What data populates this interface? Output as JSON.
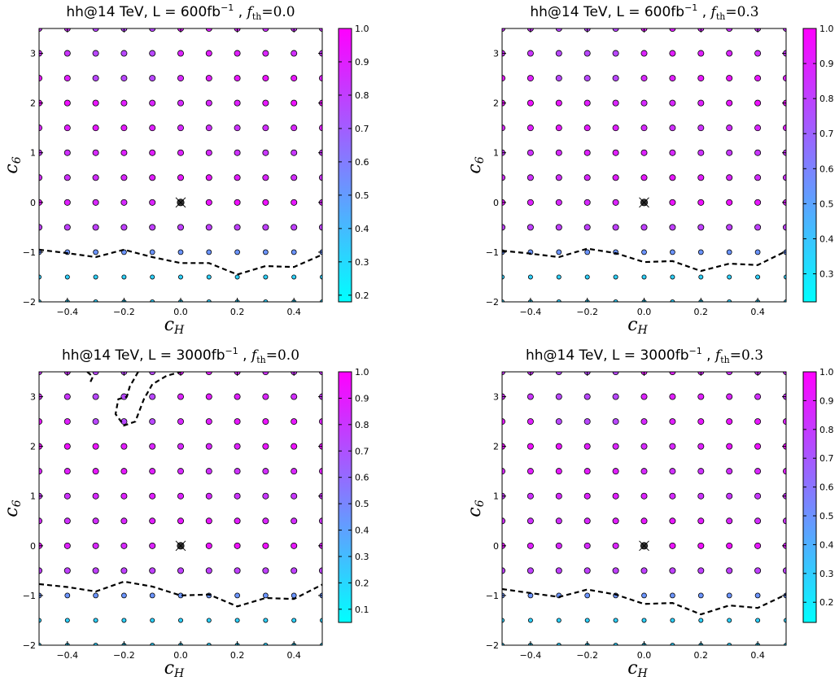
{
  "chart_data": [
    {
      "type": "scatter",
      "title": {
        "prefix": "hh@14 TeV, L = 600fb",
        "sup": "−1",
        "sep": " , ",
        "var": "f",
        "sub": "th",
        "eq": "=0.0"
      },
      "xlabel": {
        "main": "c",
        "sub": "H"
      },
      "ylabel": {
        "main": "c",
        "sub": "6"
      },
      "xlim": [
        -0.5,
        0.5
      ],
      "ylim": [
        -2,
        3.5
      ],
      "xticks": [
        -0.4,
        -0.2,
        0.0,
        0.2,
        0.4
      ],
      "xtick_labels": [
        "−0.4",
        "−0.2",
        "0.0",
        "0.2",
        "0.4"
      ],
      "yticks": [
        -2,
        -1,
        0,
        1,
        2,
        3
      ],
      "ytick_labels": [
        "−2",
        "−1",
        "0",
        "1",
        "2",
        "3"
      ],
      "colorbar": {
        "range": [
          0.18,
          1.0
        ],
        "ticks": [
          0.2,
          0.3,
          0.4,
          0.5,
          0.6,
          0.7,
          0.8,
          0.9,
          1.0
        ],
        "tick_labels": [
          "0.2",
          "0.3",
          "0.4",
          "0.5",
          "0.6",
          "0.7",
          "0.8",
          "0.9",
          "1.0"
        ]
      },
      "grid_x": [
        -0.5,
        -0.4,
        -0.3,
        -0.2,
        -0.1,
        0.0,
        0.1,
        0.2,
        0.3,
        0.4,
        0.5
      ],
      "grid_y": [
        -2,
        -1.5,
        -1,
        -0.5,
        0,
        0.5,
        1,
        1.5,
        2,
        2.5,
        3,
        3.5
      ],
      "sm_point": [
        0,
        0
      ],
      "contours": [
        [
          [
            -0.5,
            -0.95
          ],
          [
            -0.4,
            -1.02
          ],
          [
            -0.3,
            -1.1
          ],
          [
            -0.2,
            -0.95
          ],
          [
            -0.1,
            -1.1
          ],
          [
            0.0,
            -1.22
          ],
          [
            0.1,
            -1.22
          ],
          [
            0.2,
            -1.45
          ],
          [
            0.3,
            -1.28
          ],
          [
            0.4,
            -1.3
          ],
          [
            0.5,
            -1.05
          ]
        ]
      ]
    },
    {
      "type": "scatter",
      "title": {
        "prefix": "hh@14 TeV, L = 600fb",
        "sup": "−1",
        "sep": " , ",
        "var": "f",
        "sub": "th",
        "eq": "=0.3"
      },
      "xlabel": {
        "main": "c",
        "sub": "H"
      },
      "ylabel": {
        "main": "c",
        "sub": "6"
      },
      "xlim": [
        -0.5,
        0.5
      ],
      "ylim": [
        -2,
        3.5
      ],
      "xticks": [
        -0.4,
        -0.2,
        0.0,
        0.2,
        0.4
      ],
      "xtick_labels": [
        "−0.4",
        "−0.2",
        "0.0",
        "0.2",
        "0.4"
      ],
      "yticks": [
        -2,
        -1,
        0,
        1,
        2,
        3
      ],
      "ytick_labels": [
        "−2",
        "−1",
        "0",
        "1",
        "2",
        "3"
      ],
      "colorbar": {
        "range": [
          0.22,
          1.0
        ],
        "ticks": [
          0.3,
          0.4,
          0.5,
          0.6,
          0.7,
          0.8,
          0.9,
          1.0
        ],
        "tick_labels": [
          "0.3",
          "0.4",
          "0.5",
          "0.6",
          "0.7",
          "0.8",
          "0.9",
          "1.0"
        ]
      },
      "grid_x": [
        -0.5,
        -0.4,
        -0.3,
        -0.2,
        -0.1,
        0.0,
        0.1,
        0.2,
        0.3,
        0.4,
        0.5
      ],
      "grid_y": [
        -2,
        -1.5,
        -1,
        -0.5,
        0,
        0.5,
        1,
        1.5,
        2,
        2.5,
        3,
        3.5
      ],
      "sm_point": [
        0,
        0
      ],
      "contours": [
        [
          [
            -0.5,
            -0.97
          ],
          [
            -0.4,
            -1.03
          ],
          [
            -0.3,
            -1.1
          ],
          [
            -0.2,
            -0.93
          ],
          [
            -0.1,
            -1.02
          ],
          [
            0.0,
            -1.2
          ],
          [
            0.1,
            -1.18
          ],
          [
            0.2,
            -1.38
          ],
          [
            0.3,
            -1.23
          ],
          [
            0.4,
            -1.26
          ],
          [
            0.5,
            -0.98
          ]
        ]
      ]
    },
    {
      "type": "scatter",
      "title": {
        "prefix": "hh@14 TeV, L = 3000fb",
        "sup": "−1",
        "sep": " , ",
        "var": "f",
        "sub": "th",
        "eq": "=0.0"
      },
      "xlabel": {
        "main": "c",
        "sub": "H"
      },
      "ylabel": {
        "main": "c",
        "sub": "6"
      },
      "xlim": [
        -0.5,
        0.5
      ],
      "ylim": [
        -2,
        3.5
      ],
      "xticks": [
        -0.4,
        -0.2,
        0.0,
        0.2,
        0.4
      ],
      "xtick_labels": [
        "−0.4",
        "−0.2",
        "0.0",
        "0.2",
        "0.4"
      ],
      "yticks": [
        -2,
        -1,
        0,
        1,
        2,
        3
      ],
      "ytick_labels": [
        "−2",
        "−1",
        "0",
        "1",
        "2",
        "3"
      ],
      "colorbar": {
        "range": [
          0.05,
          1.0
        ],
        "ticks": [
          0.1,
          0.2,
          0.3,
          0.4,
          0.5,
          0.6,
          0.7,
          0.8,
          0.9,
          1.0
        ],
        "tick_labels": [
          "0.1",
          "0.2",
          "0.3",
          "0.4",
          "0.5",
          "0.6",
          "0.7",
          "0.8",
          "0.9",
          "1.0"
        ]
      },
      "grid_x": [
        -0.5,
        -0.4,
        -0.3,
        -0.2,
        -0.1,
        0.0,
        0.1,
        0.2,
        0.3,
        0.4,
        0.5
      ],
      "grid_y": [
        -2,
        -1.5,
        -1,
        -0.5,
        0,
        0.5,
        1,
        1.5,
        2,
        2.5,
        3,
        3.5
      ],
      "sm_point": [
        0,
        0
      ],
      "contours": [
        [
          [
            -0.5,
            -0.77
          ],
          [
            -0.4,
            -0.83
          ],
          [
            -0.3,
            -0.92
          ],
          [
            -0.2,
            -0.72
          ],
          [
            -0.1,
            -0.82
          ],
          [
            0.0,
            -1.0
          ],
          [
            0.1,
            -0.98
          ],
          [
            0.2,
            -1.22
          ],
          [
            0.3,
            -1.05
          ],
          [
            0.4,
            -1.07
          ],
          [
            0.5,
            -0.78
          ]
        ],
        [
          [
            -0.33,
            3.5
          ],
          [
            -0.31,
            3.4
          ],
          [
            -0.32,
            3.28
          ]
        ],
        [
          [
            -0.15,
            3.5
          ],
          [
            -0.18,
            3.2
          ],
          [
            -0.19,
            3.0
          ],
          [
            -0.22,
            2.95
          ],
          [
            -0.23,
            2.65
          ],
          [
            -0.2,
            2.42
          ],
          [
            -0.16,
            2.5
          ],
          [
            -0.13,
            2.95
          ],
          [
            -0.1,
            3.25
          ],
          [
            -0.05,
            3.42
          ],
          [
            0.0,
            3.5
          ]
        ]
      ]
    },
    {
      "type": "scatter",
      "title": {
        "prefix": "hh@14 TeV, L = 3000fb",
        "sup": "−1",
        "sep": " , ",
        "var": "f",
        "sub": "th",
        "eq": "=0.3"
      },
      "xlabel": {
        "main": "c",
        "sub": "H"
      },
      "ylabel": {
        "main": "c",
        "sub": "6"
      },
      "xlim": [
        -0.5,
        0.5
      ],
      "ylim": [
        -2,
        3.5
      ],
      "xticks": [
        -0.4,
        -0.2,
        0.0,
        0.2,
        0.4
      ],
      "xtick_labels": [
        "−0.4",
        "−0.2",
        "0.0",
        "0.2",
        "0.4"
      ],
      "yticks": [
        -2,
        -1,
        0,
        1,
        2,
        3
      ],
      "ytick_labels": [
        "−2",
        "−1",
        "0",
        "1",
        "2",
        "3"
      ],
      "colorbar": {
        "range": [
          0.13,
          1.0
        ],
        "ticks": [
          0.2,
          0.3,
          0.4,
          0.5,
          0.6,
          0.7,
          0.8,
          0.9,
          1.0
        ],
        "tick_labels": [
          "0.2",
          "0.3",
          "0.4",
          "0.5",
          "0.6",
          "0.7",
          "0.8",
          "0.9",
          "1.0"
        ]
      },
      "grid_x": [
        -0.5,
        -0.4,
        -0.3,
        -0.2,
        -0.1,
        0.0,
        0.1,
        0.2,
        0.3,
        0.4,
        0.5
      ],
      "grid_y": [
        -2,
        -1.5,
        -1,
        -0.5,
        0,
        0.5,
        1,
        1.5,
        2,
        2.5,
        3,
        3.5
      ],
      "sm_point": [
        0,
        0
      ],
      "contours": [
        [
          [
            -0.5,
            -0.87
          ],
          [
            -0.4,
            -0.95
          ],
          [
            -0.3,
            -1.03
          ],
          [
            -0.2,
            -0.88
          ],
          [
            -0.1,
            -0.98
          ],
          [
            0.0,
            -1.17
          ],
          [
            0.1,
            -1.15
          ],
          [
            0.2,
            -1.38
          ],
          [
            0.3,
            -1.2
          ],
          [
            0.4,
            -1.25
          ],
          [
            0.5,
            -0.98
          ]
        ]
      ]
    }
  ],
  "colors": {
    "low": "#00ffff",
    "high": "#ff00ff",
    "contour": "#000000"
  }
}
